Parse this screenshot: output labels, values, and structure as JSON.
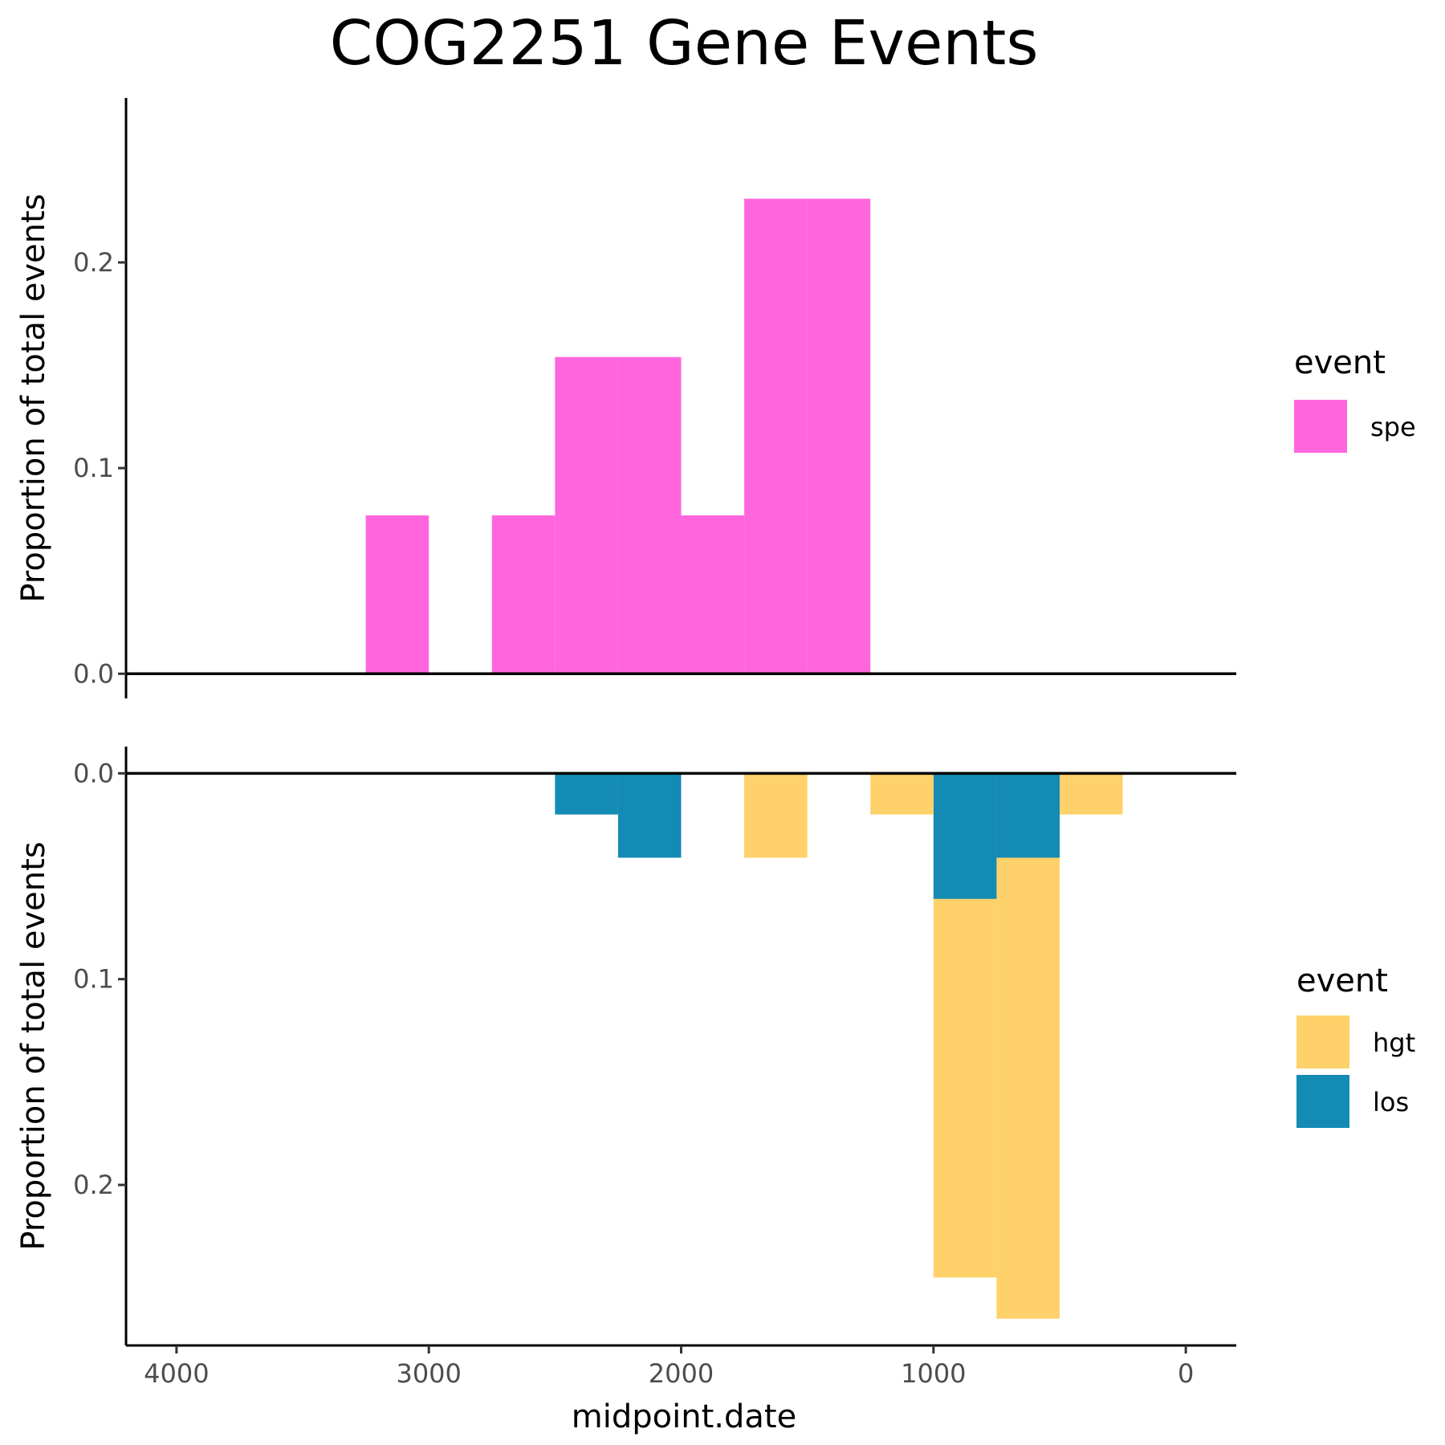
{
  "chart_data": {
    "type": "bar",
    "title": "COG2251 Gene Events",
    "xlabel": "midpoint.date",
    "x_reversed": true,
    "xlim": [
      4200,
      -200
    ],
    "x_ticks": [
      {
        "value": 4000,
        "label": "4000"
      },
      {
        "value": 3000,
        "label": "3000"
      },
      {
        "value": 2000,
        "label": "2000"
      },
      {
        "value": 1000,
        "label": "1000"
      },
      {
        "value": 0,
        "label": "0"
      }
    ],
    "bin_width": 250,
    "grid": false,
    "panels": [
      {
        "ylabel": "Proportion of total events",
        "ylim": [
          -0.012,
          0.28
        ],
        "y_direction": "up",
        "y_ticks": [
          {
            "value": 0.0,
            "label": "0.0"
          },
          {
            "value": 0.1,
            "label": "0.1"
          },
          {
            "value": 0.2,
            "label": "0.2"
          }
        ],
        "legend": {
          "title": "event",
          "placement": "right",
          "entries": [
            {
              "label": "spe",
              "color": "#ff66dd"
            }
          ]
        },
        "bars": [
          {
            "event": "spe",
            "x_start": 3000,
            "x_end": 3250,
            "value": 0.077
          },
          {
            "event": "spe",
            "x_start": 2500,
            "x_end": 2750,
            "value": 0.077
          },
          {
            "event": "spe",
            "x_start": 2250,
            "x_end": 2500,
            "value": 0.154
          },
          {
            "event": "spe",
            "x_start": 2000,
            "x_end": 2250,
            "value": 0.154
          },
          {
            "event": "spe",
            "x_start": 1750,
            "x_end": 2000,
            "value": 0.077
          },
          {
            "event": "spe",
            "x_start": 1500,
            "x_end": 1750,
            "value": 0.231
          },
          {
            "event": "spe",
            "x_start": 1250,
            "x_end": 1500,
            "value": 0.231
          }
        ]
      },
      {
        "ylabel": "Proportion of total events",
        "ylim": [
          -0.013,
          0.278
        ],
        "y_direction": "down",
        "y_ticks": [
          {
            "value": 0.0,
            "label": "0.0"
          },
          {
            "value": 0.1,
            "label": "0.1"
          },
          {
            "value": 0.2,
            "label": "0.2"
          }
        ],
        "legend": {
          "title": "event",
          "placement": "right",
          "entries": [
            {
              "label": "hgt",
              "color": "#fed16a"
            },
            {
              "label": "los",
              "color": "#138bb4"
            }
          ]
        },
        "bars": [
          {
            "event": "los",
            "x_start": 2250,
            "x_end": 2500,
            "value": 0.02
          },
          {
            "event": "los",
            "x_start": 2000,
            "x_end": 2250,
            "value": 0.041
          },
          {
            "event": "hgt",
            "x_start": 1500,
            "x_end": 1750,
            "value": 0.041
          },
          {
            "event": "hgt",
            "x_start": 1000,
            "x_end": 1250,
            "value": 0.02
          },
          {
            "event": "los",
            "x_start": 750,
            "x_end": 1000,
            "value": 0.061
          },
          {
            "event": "hgt",
            "x_start": 750,
            "x_end": 1000,
            "value": 0.245
          },
          {
            "event": "los",
            "x_start": 500,
            "x_end": 750,
            "value": 0.041
          },
          {
            "event": "hgt",
            "x_start": 500,
            "x_end": 750,
            "value": 0.265
          },
          {
            "event": "hgt",
            "x_start": 250,
            "x_end": 500,
            "value": 0.02
          }
        ]
      }
    ]
  }
}
